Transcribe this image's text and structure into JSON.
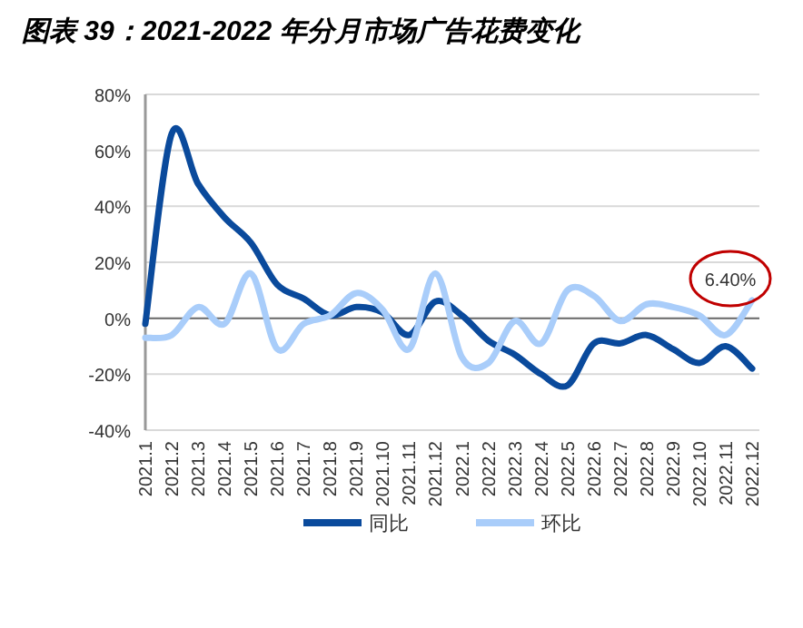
{
  "chart_data": {
    "type": "line",
    "title": "图表 39：2021-2022 年分月市场广告花费变化",
    "categories": [
      "2021.1",
      "2021.2",
      "2021.3",
      "2021.4",
      "2021.5",
      "2021.6",
      "2021.7",
      "2021.8",
      "2021.9",
      "2021.10",
      "2021.11",
      "2021.12",
      "2022.1",
      "2022.2",
      "2022.3",
      "2022.4",
      "2022.5",
      "2022.6",
      "2022.7",
      "2022.8",
      "2022.9",
      "2022.10",
      "2022.11",
      "2022.12"
    ],
    "series": [
      {
        "name": "同比",
        "color": "#0a4a9c",
        "values": [
          -2,
          66,
          48,
          36,
          27,
          12,
          7,
          1,
          4,
          2,
          -6,
          6,
          1,
          -8,
          -13,
          -20,
          -24,
          -9,
          -9,
          -6,
          -11,
          -16,
          -10,
          -18
        ]
      },
      {
        "name": "环比",
        "color": "#a9cdfa",
        "values": [
          -7,
          -6,
          4,
          -2,
          16,
          -11,
          -2,
          1,
          9,
          3,
          -11,
          16,
          -14,
          -16,
          -1,
          -9,
          10,
          8,
          -1,
          5,
          4,
          1,
          -6,
          6.4
        ],
        "value_labels": [
          null,
          null,
          null,
          null,
          null,
          null,
          null,
          null,
          null,
          null,
          null,
          null,
          null,
          null,
          null,
          null,
          null,
          null,
          null,
          null,
          null,
          null,
          null,
          "6.40%"
        ]
      }
    ],
    "ylim": [
      -40,
      80
    ],
    "yticks": [
      {
        "value": -40,
        "label": "-40%"
      },
      {
        "value": -20,
        "label": "-20%"
      },
      {
        "value": 0,
        "label": "0%"
      },
      {
        "value": 20,
        "label": "20%"
      },
      {
        "value": 40,
        "label": "40%"
      },
      {
        "value": 60,
        "label": "60%"
      },
      {
        "value": 80,
        "label": "80%"
      }
    ],
    "grid": "y",
    "legend": "bottom",
    "marker": "none",
    "line_style": "solid"
  }
}
